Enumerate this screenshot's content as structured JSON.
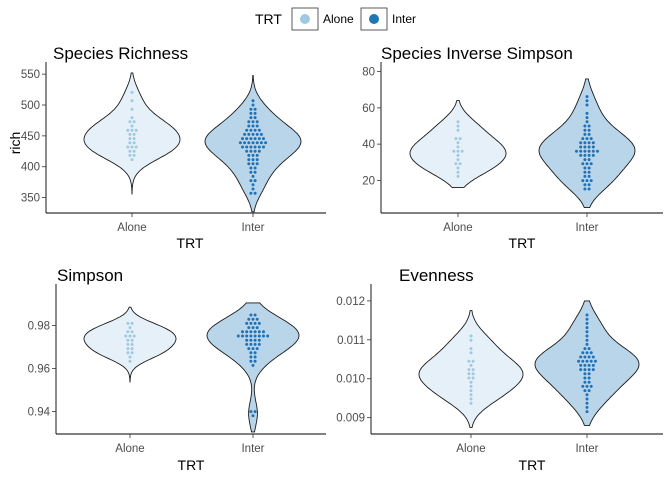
{
  "legend": {
    "title": "TRT",
    "items": [
      {
        "label": "Alone",
        "fill": "#9ecae1",
        "violin": "#e6f0f8",
        "dot": "#9ecae1"
      },
      {
        "label": "Inter",
        "fill": "#1f78b4",
        "violin": "#b9d5ea",
        "dot": "#2171b5"
      }
    ]
  },
  "chart_data": [
    {
      "type": "violin",
      "title": "Species Richness",
      "xlabel": "TRT",
      "ylabel": "rich",
      "categories": [
        "Alone",
        "Inter"
      ],
      "ylim": [
        325,
        560
      ],
      "yticks": [
        350,
        400,
        450,
        500,
        550
      ],
      "series": [
        {
          "name": "Alone",
          "range": [
            355,
            552
          ],
          "points": [
            520,
            505,
            490,
            480,
            475,
            470,
            465,
            462,
            460,
            458,
            455,
            450,
            447,
            445,
            440,
            438,
            435,
            432,
            430,
            428,
            425,
            420,
            415,
            410
          ]
        },
        {
          "name": "Inter",
          "range": [
            327,
            548
          ],
          "points": [
            505,
            500,
            495,
            490,
            487,
            484,
            480,
            477,
            475,
            472,
            470,
            468,
            466,
            464,
            462,
            460,
            458,
            456,
            455,
            454,
            452,
            450,
            449,
            448,
            447,
            446,
            445,
            444,
            443,
            442,
            441,
            440,
            439,
            438,
            437,
            436,
            435,
            434,
            433,
            432,
            431,
            430,
            428,
            426,
            424,
            422,
            420,
            418,
            416,
            414,
            412,
            410,
            408,
            405,
            402,
            400,
            397,
            394,
            390,
            385,
            380,
            375,
            370,
            365,
            360,
            355
          ]
        }
      ]
    },
    {
      "type": "violin",
      "title": "Species Inverse Simpson",
      "xlabel": "TRT",
      "ylabel": "",
      "categories": [
        "Alone",
        "Inter"
      ],
      "ylim": [
        2,
        82
      ],
      "yticks": [
        20,
        40,
        60,
        80
      ],
      "series": [
        {
          "name": "Alone",
          "range": [
            16,
            64
          ],
          "points": [
            53,
            50,
            47,
            44,
            42,
            40,
            38,
            37,
            36,
            35,
            34,
            32,
            30,
            29,
            27,
            25,
            23
          ]
        },
        {
          "name": "Inter",
          "range": [
            5,
            76
          ],
          "points": [
            66,
            64,
            61,
            58,
            55,
            53,
            51,
            49,
            48,
            47,
            46,
            45,
            44,
            43,
            42,
            41,
            41,
            40,
            40,
            39,
            39,
            38,
            38,
            37,
            37,
            36,
            36,
            35,
            35,
            34,
            34,
            33,
            33,
            32,
            31,
            30,
            29,
            28,
            27,
            26,
            25,
            24,
            23,
            22,
            21,
            20,
            19,
            18,
            17,
            16,
            15
          ]
        }
      ]
    },
    {
      "type": "violin",
      "title": "Simpson",
      "xlabel": "TRT",
      "ylabel": "",
      "categories": [
        "Alone",
        "Inter"
      ],
      "ylim": [
        0.9295,
        0.9965
      ],
      "yticks": [
        0.94,
        0.96,
        0.98
      ],
      "series": [
        {
          "name": "Alone",
          "range": [
            0.9535,
            0.9885
          ],
          "points": [
            0.9815,
            0.98,
            0.979,
            0.978,
            0.977,
            0.976,
            0.975,
            0.9745,
            0.974,
            0.973,
            0.972,
            0.971,
            0.97,
            0.969,
            0.968,
            0.967,
            0.966,
            0.964
          ]
        },
        {
          "name": "Inter",
          "range": [
            0.9305,
            0.9905
          ],
          "points": [
            0.985,
            0.984,
            0.983,
            0.9825,
            0.982,
            0.9815,
            0.981,
            0.9805,
            0.98,
            0.9795,
            0.979,
            0.9785,
            0.978,
            0.9775,
            0.977,
            0.9768,
            0.9765,
            0.9762,
            0.976,
            0.9758,
            0.9755,
            0.9752,
            0.975,
            0.9748,
            0.9745,
            0.9742,
            0.974,
            0.9735,
            0.973,
            0.9725,
            0.972,
            0.9715,
            0.971,
            0.9705,
            0.97,
            0.9695,
            0.969,
            0.968,
            0.967,
            0.966,
            0.965,
            0.964,
            0.963,
            0.962,
            0.94,
            0.939,
            0.938
          ]
        }
      ]
    },
    {
      "type": "violin",
      "title": "Evenness",
      "xlabel": "TRT",
      "ylabel": "",
      "categories": [
        "Alone",
        "Inter"
      ],
      "ylim": [
        0.00858,
        0.01228
      ],
      "yticks": [
        0.009,
        0.01,
        0.011,
        0.012
      ],
      "series": [
        {
          "name": "Alone",
          "range": [
            0.00875,
            0.01175
          ],
          "points": [
            0.0111,
            0.01095,
            0.0108,
            0.01065,
            0.0105,
            0.0104,
            0.0103,
            0.01025,
            0.0102,
            0.01015,
            0.0101,
            0.01005,
            0.01,
            0.0099,
            0.0098,
            0.0097,
            0.0096,
            0.0095,
            0.0094
          ]
        },
        {
          "name": "Inter",
          "range": [
            0.0088,
            0.012
          ],
          "points": [
            0.0116,
            0.0115,
            0.0114,
            0.0113,
            0.0112,
            0.0111,
            0.011,
            0.0109,
            0.0108,
            0.01075,
            0.0107,
            0.01065,
            0.01062,
            0.0106,
            0.01058,
            0.01055,
            0.01052,
            0.0105,
            0.01048,
            0.01045,
            0.01042,
            0.0104,
            0.01038,
            0.01035,
            0.01032,
            0.0103,
            0.01028,
            0.01025,
            0.01022,
            0.0102,
            0.01015,
            0.0101,
            0.01005,
            0.01,
            0.00995,
            0.0099,
            0.00985,
            0.0098,
            0.00975,
            0.0097,
            0.00965,
            0.0096,
            0.0095,
            0.0094,
            0.0093,
            0.0092
          ]
        }
      ]
    }
  ]
}
